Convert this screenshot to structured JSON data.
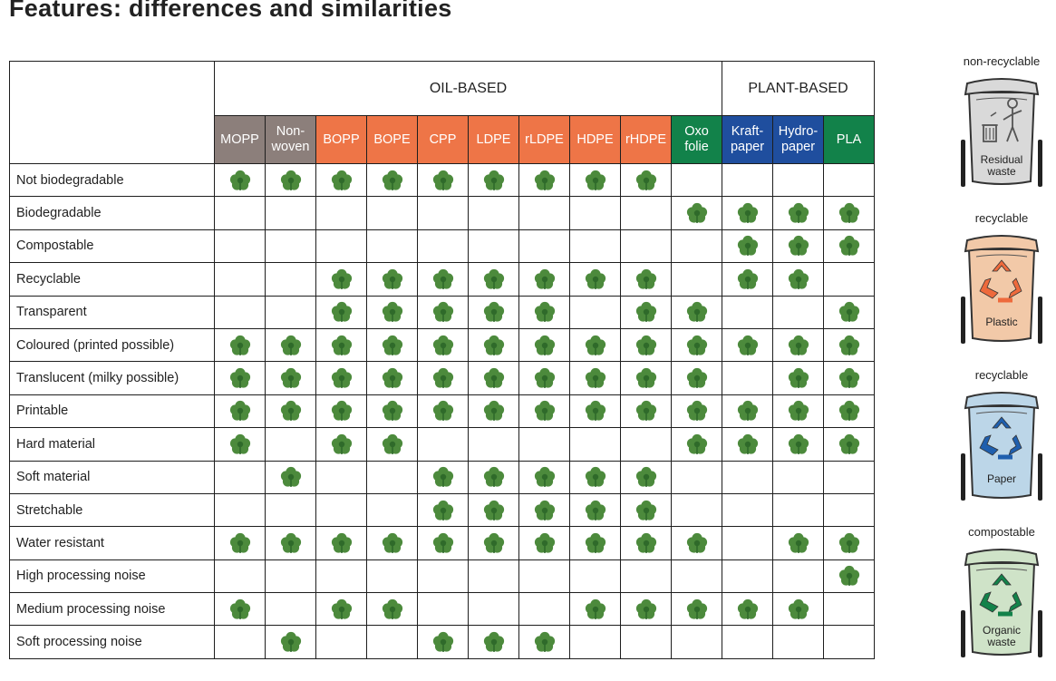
{
  "title": "Features: differences and similarities",
  "groups": [
    {
      "label": "OIL-BASED",
      "span": 10
    },
    {
      "label": "PLANT-BASED",
      "span": 3
    }
  ],
  "materials": [
    {
      "label": "MOPP",
      "color": "#8c7f7b"
    },
    {
      "label": "Non-\nwoven",
      "color": "#8c7f7b"
    },
    {
      "label": "BOPP",
      "color": "#ee7547"
    },
    {
      "label": "BOPE",
      "color": "#ee7547"
    },
    {
      "label": "CPP",
      "color": "#ee7547"
    },
    {
      "label": "LDPE",
      "color": "#ee7547"
    },
    {
      "label": "rLDPE",
      "color": "#ee7547"
    },
    {
      "label": "HDPE",
      "color": "#ee7547"
    },
    {
      "label": "rHDPE",
      "color": "#ee7547"
    },
    {
      "label": "Oxo\nfolie",
      "color": "#12824a"
    },
    {
      "label": "Kraft-\npaper",
      "color": "#1f4e9e"
    },
    {
      "label": "Hydro-\npaper",
      "color": "#1f4e9e"
    },
    {
      "label": "PLA",
      "color": "#12824a"
    }
  ],
  "features": [
    {
      "label": "Not biodegradable",
      "marks": [
        1,
        1,
        1,
        1,
        1,
        1,
        1,
        1,
        1,
        0,
        0,
        0,
        0
      ]
    },
    {
      "label": "Biodegradable",
      "marks": [
        0,
        0,
        0,
        0,
        0,
        0,
        0,
        0,
        0,
        1,
        1,
        1,
        1
      ]
    },
    {
      "label": "Compostable",
      "marks": [
        0,
        0,
        0,
        0,
        0,
        0,
        0,
        0,
        0,
        0,
        1,
        1,
        1
      ]
    },
    {
      "label": "Recyclable",
      "marks": [
        0,
        0,
        1,
        1,
        1,
        1,
        1,
        1,
        1,
        0,
        1,
        1,
        0
      ]
    },
    {
      "label": "Transparent",
      "marks": [
        0,
        0,
        1,
        1,
        1,
        1,
        1,
        0,
        1,
        1,
        0,
        0,
        1
      ]
    },
    {
      "label": "Coloured (printed possible)",
      "marks": [
        1,
        1,
        1,
        1,
        1,
        1,
        1,
        1,
        1,
        1,
        1,
        1,
        1
      ]
    },
    {
      "label": "Translucent (milky possible)",
      "marks": [
        1,
        1,
        1,
        1,
        1,
        1,
        1,
        1,
        1,
        1,
        0,
        1,
        1
      ]
    },
    {
      "label": "Printable",
      "marks": [
        1,
        1,
        1,
        1,
        1,
        1,
        1,
        1,
        1,
        1,
        1,
        1,
        1
      ]
    },
    {
      "label": "Hard material",
      "marks": [
        1,
        0,
        1,
        1,
        0,
        0,
        0,
        0,
        0,
        1,
        1,
        1,
        1
      ]
    },
    {
      "label": "Soft material",
      "marks": [
        0,
        1,
        0,
        0,
        1,
        1,
        1,
        1,
        1,
        0,
        0,
        0,
        0
      ]
    },
    {
      "label": "Stretchable",
      "marks": [
        0,
        0,
        0,
        0,
        1,
        1,
        1,
        1,
        1,
        0,
        0,
        0,
        0
      ]
    },
    {
      "label": "Water resistant",
      "marks": [
        1,
        1,
        1,
        1,
        1,
        1,
        1,
        1,
        1,
        1,
        0,
        1,
        1
      ]
    },
    {
      "label": "High processing noise",
      "marks": [
        0,
        0,
        0,
        0,
        0,
        0,
        0,
        0,
        0,
        0,
        0,
        0,
        1
      ]
    },
    {
      "label": "Medium processing noise",
      "marks": [
        1,
        0,
        1,
        1,
        0,
        0,
        0,
        1,
        1,
        1,
        1,
        1,
        0
      ]
    },
    {
      "label": "Soft processing noise",
      "marks": [
        0,
        1,
        0,
        0,
        1,
        1,
        1,
        0,
        0,
        0,
        0,
        0,
        0
      ]
    }
  ],
  "bins": [
    {
      "category": "non-recyclable",
      "label": "Residual\nwaste",
      "tint": "#d9d9d9",
      "symbol_color": "#555555",
      "symbol": "trash-person-icon"
    },
    {
      "category": "recyclable",
      "label": "Plastic",
      "tint": "#f2c9a8",
      "symbol_color": "#ee6a3c",
      "symbol": "recycle-icon"
    },
    {
      "category": "recyclable",
      "label": "Paper",
      "tint": "#bcd6e8",
      "symbol_color": "#1f5fae",
      "symbol": "recycle-icon"
    },
    {
      "category": "compostable",
      "label": "Organic\nwaste",
      "tint": "#cfe3c8",
      "symbol_color": "#13824a",
      "symbol": "recycle-icon"
    }
  ],
  "colors": {
    "leaf": "#4c8a3c",
    "leaf_dark": "#2f6a2a",
    "border": "#1e1e1e"
  }
}
